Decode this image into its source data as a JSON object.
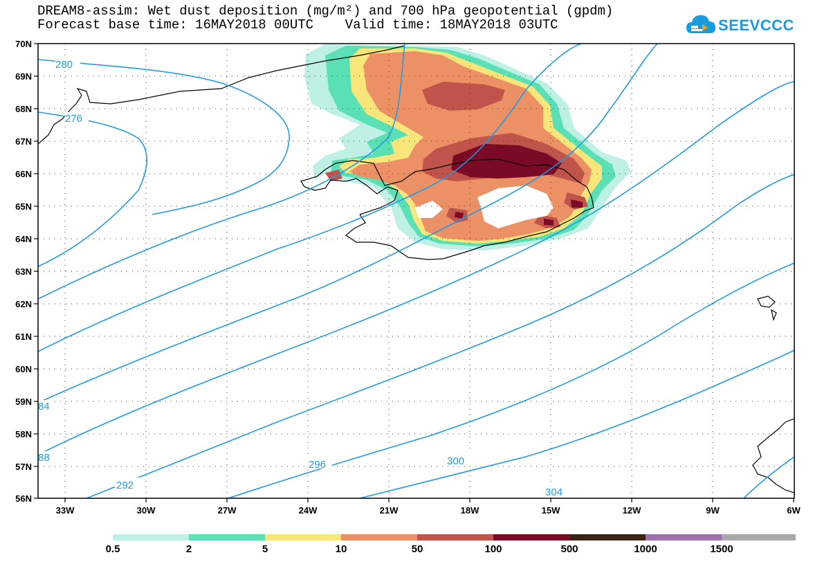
{
  "header": {
    "title_line1": "DREAM8-assim: Wet dust deposition (mg/m²) and 700 hPa geopotential (gpdm)",
    "title_line2": "Forecast base time: 16MAY2018 00UTC    Valid time: 18MAY2018 03UTC"
  },
  "logo": {
    "text": "SEEVCCC",
    "icon": "cloud-icon",
    "color": "#1a9be0"
  },
  "map": {
    "lon_range": [
      -34,
      -6
    ],
    "lat_range": [
      56,
      70
    ],
    "lat_labels": [
      "70N",
      "69N",
      "68N",
      "67N",
      "66N",
      "65N",
      "64N",
      "63N",
      "62N",
      "61N",
      "60N",
      "59N",
      "58N",
      "57N",
      "56N"
    ],
    "lon_labels": [
      "33W",
      "30W",
      "27W",
      "24W",
      "21W",
      "18W",
      "15W",
      "12W",
      "9W",
      "6W"
    ],
    "contour_color": "#1e9be6",
    "contour_labels": [
      "280",
      "276",
      "84",
      "88",
      "292",
      "296",
      "300",
      "304"
    ]
  },
  "legend": {
    "labels": [
      "0.5",
      "2",
      "5",
      "10",
      "50",
      "100",
      "500",
      "1000",
      "1500"
    ],
    "colors": [
      "#bff0e6",
      "#5ae0b4",
      "#f8e67a",
      "#ec9066",
      "#c0544a",
      "#7a0a26",
      "#3a2214",
      "#9e70ac",
      "#a8a8a8"
    ]
  }
}
